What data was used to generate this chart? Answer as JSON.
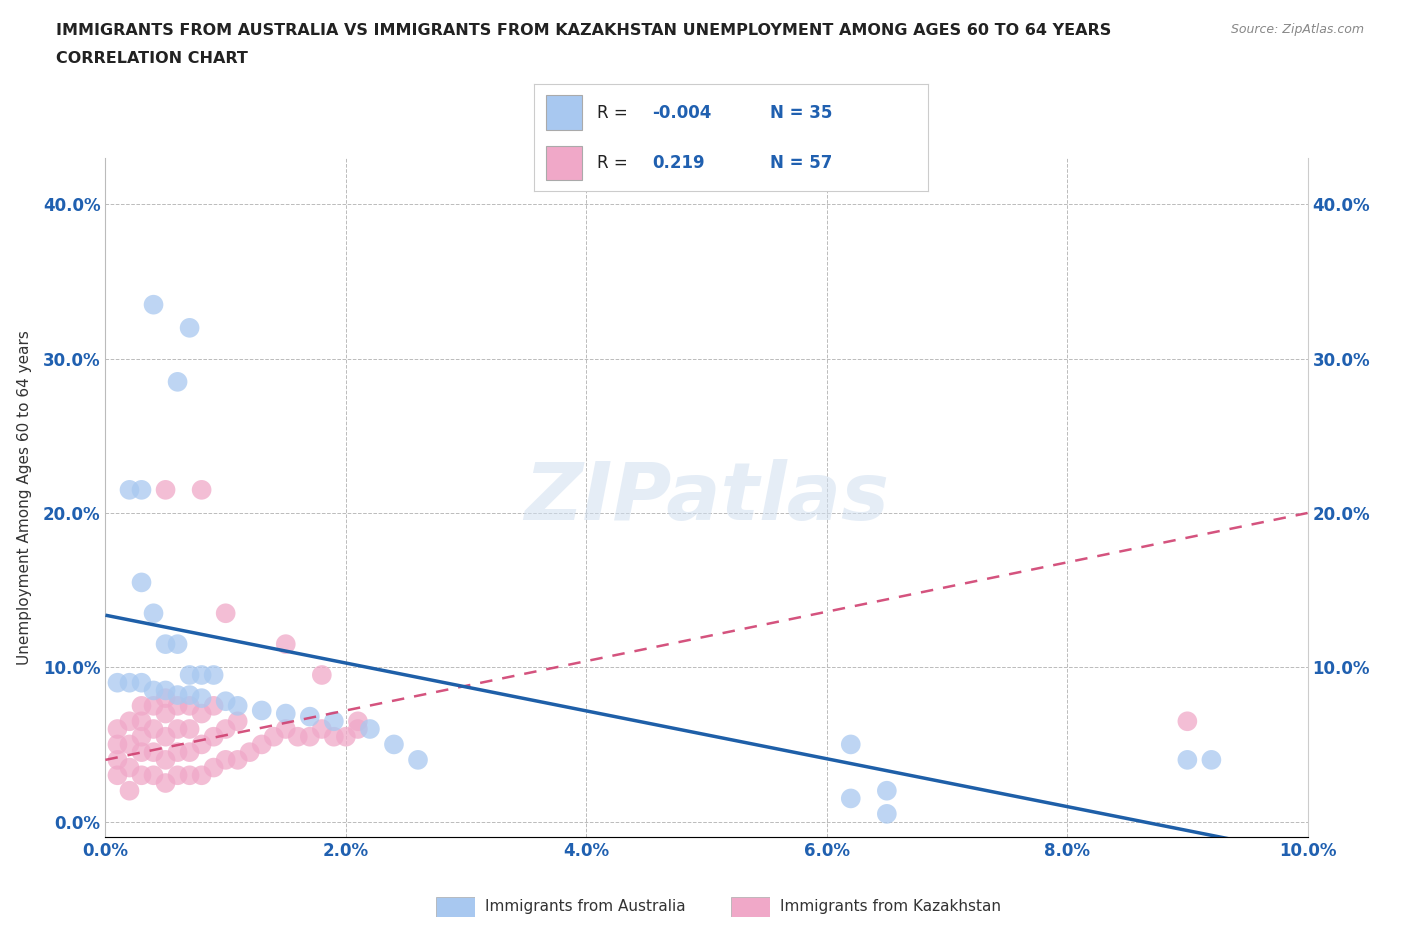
{
  "title_line1": "IMMIGRANTS FROM AUSTRALIA VS IMMIGRANTS FROM KAZAKHSTAN UNEMPLOYMENT AMONG AGES 60 TO 64 YEARS",
  "title_line2": "CORRELATION CHART",
  "source": "Source: ZipAtlas.com",
  "ylabel": "Unemployment Among Ages 60 to 64 years",
  "xlim": [
    0.0,
    0.1
  ],
  "ylim": [
    -0.01,
    0.43
  ],
  "r_australia": -0.004,
  "n_australia": 35,
  "r_kazakhstan": 0.219,
  "n_kazakhstan": 57,
  "color_australia": "#a8c8f0",
  "color_kazakhstan": "#f0a8c8",
  "trendline_australia_color": "#1e5fa8",
  "trendline_kazakhstan_color": "#d04070",
  "aus_x": [
    0.004,
    0.007,
    0.006,
    0.002,
    0.003,
    0.003,
    0.004,
    0.005,
    0.006,
    0.007,
    0.008,
    0.009,
    0.001,
    0.002,
    0.003,
    0.004,
    0.005,
    0.006,
    0.007,
    0.008,
    0.01,
    0.011,
    0.013,
    0.015,
    0.017,
    0.019,
    0.022,
    0.024,
    0.026,
    0.062,
    0.065,
    0.09,
    0.092,
    0.062,
    0.065
  ],
  "aus_y": [
    0.335,
    0.32,
    0.285,
    0.215,
    0.215,
    0.155,
    0.135,
    0.115,
    0.115,
    0.095,
    0.095,
    0.095,
    0.09,
    0.09,
    0.09,
    0.085,
    0.085,
    0.082,
    0.082,
    0.08,
    0.078,
    0.075,
    0.072,
    0.07,
    0.068,
    0.065,
    0.06,
    0.05,
    0.04,
    0.05,
    0.02,
    0.04,
    0.04,
    0.015,
    0.005
  ],
  "kaz_x": [
    0.001,
    0.001,
    0.001,
    0.001,
    0.002,
    0.002,
    0.002,
    0.002,
    0.003,
    0.003,
    0.003,
    0.003,
    0.003,
    0.004,
    0.004,
    0.004,
    0.004,
    0.005,
    0.005,
    0.005,
    0.005,
    0.005,
    0.006,
    0.006,
    0.006,
    0.006,
    0.007,
    0.007,
    0.007,
    0.007,
    0.008,
    0.008,
    0.008,
    0.009,
    0.009,
    0.009,
    0.01,
    0.01,
    0.011,
    0.011,
    0.012,
    0.013,
    0.014,
    0.015,
    0.016,
    0.017,
    0.018,
    0.019,
    0.02,
    0.021,
    0.005,
    0.008,
    0.01,
    0.015,
    0.018,
    0.09,
    0.021
  ],
  "kaz_y": [
    0.03,
    0.04,
    0.05,
    0.06,
    0.02,
    0.035,
    0.05,
    0.065,
    0.03,
    0.045,
    0.055,
    0.065,
    0.075,
    0.03,
    0.045,
    0.06,
    0.075,
    0.025,
    0.04,
    0.055,
    0.07,
    0.08,
    0.03,
    0.045,
    0.06,
    0.075,
    0.03,
    0.045,
    0.06,
    0.075,
    0.03,
    0.05,
    0.07,
    0.035,
    0.055,
    0.075,
    0.04,
    0.06,
    0.04,
    0.065,
    0.045,
    0.05,
    0.055,
    0.06,
    0.055,
    0.055,
    0.06,
    0.055,
    0.055,
    0.06,
    0.215,
    0.215,
    0.135,
    0.115,
    0.095,
    0.065,
    0.065
  ]
}
